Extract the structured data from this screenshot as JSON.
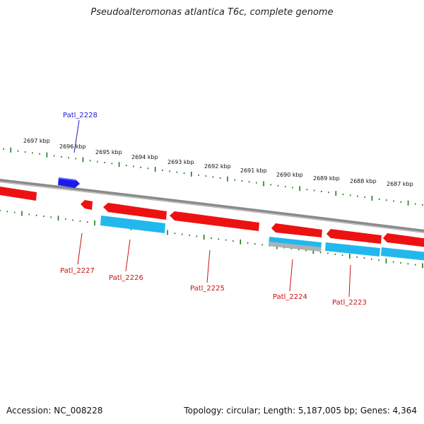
{
  "title": "Pseudoalteromonas atlantica T6c, complete genome",
  "footer": {
    "accession": "Accession: NC_008228",
    "summary": "Topology: circular; Length: 5,187,005 bp; Genes: 4,364"
  },
  "colors": {
    "backbone": "#888888",
    "tick": "#1e7a1e",
    "forward_gene": "#1a1aee",
    "reverse_gene": "#ee1111",
    "product": "#22b8ee",
    "product_gray": "#b0b0b0",
    "forward_label": "#1a1acc",
    "reverse_label": "#cc1111"
  },
  "scale_labels": [
    "2697 kbp",
    "2696 kbp",
    "2695 kbp",
    "2694 kbp",
    "2693 kbp",
    "2692 kbp",
    "2691 kbp",
    "2690 kbp",
    "2689 kbp",
    "2688 kbp",
    "2687 kbp"
  ],
  "gene_labels": [
    {
      "name": "Patl_2228",
      "strand": "forward"
    },
    {
      "name": "Patl_2227",
      "strand": "reverse"
    },
    {
      "name": "Patl_2226",
      "strand": "reverse"
    },
    {
      "name": "Patl_2225",
      "strand": "reverse"
    },
    {
      "name": "Patl_2224",
      "strand": "reverse"
    },
    {
      "name": "Patl_2223",
      "strand": "reverse"
    }
  ]
}
